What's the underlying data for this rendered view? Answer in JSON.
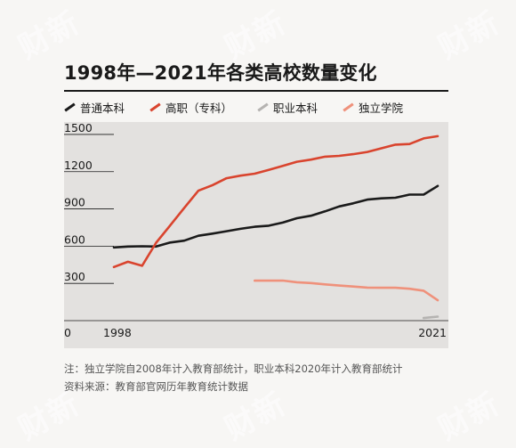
{
  "title": "1998年—2021年各类高校数量变化",
  "watermark": "财新",
  "legend": [
    {
      "label": "普通本科",
      "color": "#1a1a1a"
    },
    {
      "label": "高职（专科）",
      "color": "#d9442e"
    },
    {
      "label": "职业本科",
      "color": "#b5b3b1"
    },
    {
      "label": "独立学院",
      "color": "#ef917b"
    }
  ],
  "notes": {
    "line1": "注：独立学院自2008年计入教育部统计，职业本科2020年计入教育部统计",
    "line2": "资料来源：教育部官网历年教育统计数据"
  },
  "chart_data": {
    "type": "line",
    "title": "1998年—2021年各类高校数量变化",
    "xlabel": "",
    "ylabel": "",
    "xlim": [
      1998,
      2021
    ],
    "ylim": [
      0,
      1600
    ],
    "yticks": [
      0,
      300,
      600,
      900,
      1200,
      1500
    ],
    "xtick_labels": [
      "1998",
      "2021"
    ],
    "grid": "horizontal",
    "legend_position": "top",
    "series": [
      {
        "name": "普通本科",
        "color": "#1a1a1a",
        "x": [
          1998,
          1999,
          2000,
          2001,
          2002,
          2003,
          2004,
          2005,
          2006,
          2007,
          2008,
          2009,
          2010,
          2011,
          2012,
          2013,
          2014,
          2015,
          2016,
          2017,
          2018,
          2019,
          2020,
          2021
        ],
        "y": [
          590,
          597,
          599,
          597,
          629,
          644,
          684,
          701,
          720,
          740,
          756,
          765,
          790,
          825,
          845,
          880,
          920,
          945,
          975,
          985,
          990,
          1015,
          1015,
          1085
        ]
      },
      {
        "name": "高职（专科）",
        "color": "#d9442e",
        "x": [
          1998,
          1999,
          2000,
          2001,
          2002,
          2003,
          2004,
          2005,
          2006,
          2007,
          2008,
          2009,
          2010,
          2011,
          2012,
          2013,
          2014,
          2015,
          2016,
          2017,
          2018,
          2019,
          2020,
          2021
        ],
        "y": [
          432,
          474,
          442,
          628,
          767,
          908,
          1047,
          1091,
          1147,
          1168,
          1184,
          1215,
          1246,
          1280,
          1297,
          1321,
          1327,
          1341,
          1359,
          1388,
          1418,
          1423,
          1468,
          1486
        ]
      },
      {
        "name": "职业本科",
        "color": "#b5b3b1",
        "x": [
          2020,
          2021
        ],
        "y": [
          21,
          32
        ]
      },
      {
        "name": "独立学院",
        "color": "#ef917b",
        "x": [
          2008,
          2009,
          2010,
          2011,
          2012,
          2013,
          2014,
          2015,
          2016,
          2017,
          2018,
          2019,
          2020,
          2021
        ],
        "y": [
          322,
          322,
          323,
          309,
          303,
          292,
          283,
          275,
          266,
          265,
          265,
          257,
          241,
          164
        ]
      }
    ]
  }
}
